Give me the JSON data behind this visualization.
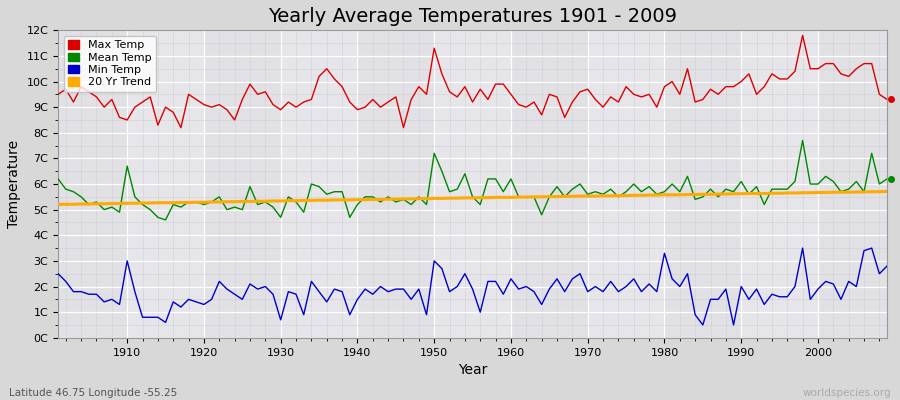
{
  "title": "Yearly Average Temperatures 1901 - 2009",
  "xlabel": "Year",
  "ylabel": "Temperature",
  "subtitle_lat": "Latitude 46.75 Longitude -55.25",
  "watermark": "worldspecies.org",
  "years": [
    1901,
    1902,
    1903,
    1904,
    1905,
    1906,
    1907,
    1908,
    1909,
    1910,
    1911,
    1912,
    1913,
    1914,
    1915,
    1916,
    1917,
    1918,
    1919,
    1920,
    1921,
    1922,
    1923,
    1924,
    1925,
    1926,
    1927,
    1928,
    1929,
    1930,
    1931,
    1932,
    1933,
    1934,
    1935,
    1936,
    1937,
    1938,
    1939,
    1940,
    1941,
    1942,
    1943,
    1944,
    1945,
    1946,
    1947,
    1948,
    1949,
    1950,
    1951,
    1952,
    1953,
    1954,
    1955,
    1956,
    1957,
    1958,
    1959,
    1960,
    1961,
    1962,
    1963,
    1964,
    1965,
    1966,
    1967,
    1968,
    1969,
    1970,
    1971,
    1972,
    1973,
    1974,
    1975,
    1976,
    1977,
    1978,
    1979,
    1980,
    1981,
    1982,
    1983,
    1984,
    1985,
    1986,
    1987,
    1988,
    1989,
    1990,
    1991,
    1992,
    1993,
    1994,
    1995,
    1996,
    1997,
    1998,
    1999,
    2000,
    2001,
    2002,
    2003,
    2004,
    2005,
    2006,
    2007,
    2008,
    2009
  ],
  "max_temp": [
    9.5,
    9.7,
    9.2,
    9.8,
    9.6,
    9.4,
    9.0,
    9.3,
    8.6,
    8.5,
    9.0,
    9.2,
    9.4,
    8.3,
    9.0,
    8.8,
    8.2,
    9.5,
    9.3,
    9.1,
    9.0,
    9.1,
    8.9,
    8.5,
    9.3,
    9.9,
    9.5,
    9.6,
    9.1,
    8.9,
    9.2,
    9.0,
    9.2,
    9.3,
    10.2,
    10.5,
    10.1,
    9.8,
    9.2,
    8.9,
    9.0,
    9.3,
    9.0,
    9.2,
    9.4,
    8.2,
    9.3,
    9.8,
    9.5,
    11.3,
    10.3,
    9.6,
    9.4,
    9.8,
    9.2,
    9.7,
    9.3,
    9.9,
    9.9,
    9.5,
    9.1,
    9.0,
    9.2,
    8.7,
    9.5,
    9.4,
    8.6,
    9.2,
    9.6,
    9.7,
    9.3,
    9.0,
    9.4,
    9.2,
    9.8,
    9.5,
    9.4,
    9.5,
    9.0,
    9.8,
    10.0,
    9.5,
    10.5,
    9.2,
    9.3,
    9.7,
    9.5,
    9.8,
    9.8,
    10.0,
    10.3,
    9.5,
    9.8,
    10.3,
    10.1,
    10.1,
    10.4,
    11.8,
    10.5,
    10.5,
    10.7,
    10.7,
    10.3,
    10.2,
    10.5,
    10.7,
    10.7,
    9.5,
    9.3
  ],
  "mean_temp": [
    6.2,
    5.8,
    5.7,
    5.5,
    5.2,
    5.3,
    5.0,
    5.1,
    4.9,
    6.7,
    5.5,
    5.2,
    5.0,
    4.7,
    4.6,
    5.2,
    5.1,
    5.3,
    5.3,
    5.2,
    5.3,
    5.5,
    5.0,
    5.1,
    5.0,
    5.9,
    5.2,
    5.3,
    5.1,
    4.7,
    5.5,
    5.3,
    4.9,
    6.0,
    5.9,
    5.6,
    5.7,
    5.7,
    4.7,
    5.2,
    5.5,
    5.5,
    5.3,
    5.5,
    5.3,
    5.4,
    5.2,
    5.5,
    5.2,
    7.2,
    6.5,
    5.7,
    5.8,
    6.4,
    5.5,
    5.2,
    6.2,
    6.2,
    5.7,
    6.2,
    5.5,
    5.5,
    5.5,
    4.8,
    5.5,
    5.9,
    5.5,
    5.8,
    6.0,
    5.6,
    5.7,
    5.6,
    5.8,
    5.5,
    5.7,
    6.0,
    5.7,
    5.9,
    5.6,
    5.7,
    6.0,
    5.7,
    6.3,
    5.4,
    5.5,
    5.8,
    5.5,
    5.8,
    5.7,
    6.1,
    5.6,
    5.9,
    5.2,
    5.8,
    5.8,
    5.8,
    6.1,
    7.7,
    6.0,
    6.0,
    6.3,
    6.1,
    5.7,
    5.8,
    6.1,
    5.7,
    7.2,
    6.0,
    6.2
  ],
  "min_temp": [
    2.5,
    2.2,
    1.8,
    1.8,
    1.7,
    1.7,
    1.4,
    1.5,
    1.3,
    3.0,
    1.8,
    0.8,
    0.8,
    0.8,
    0.6,
    1.4,
    1.2,
    1.5,
    1.4,
    1.3,
    1.5,
    2.2,
    1.9,
    1.7,
    1.5,
    2.1,
    1.9,
    2.0,
    1.7,
    0.7,
    1.8,
    1.7,
    0.9,
    2.2,
    1.8,
    1.4,
    1.9,
    1.8,
    0.9,
    1.5,
    1.9,
    1.7,
    2.0,
    1.8,
    1.9,
    1.9,
    1.5,
    1.9,
    0.9,
    3.0,
    2.7,
    1.8,
    2.0,
    2.5,
    1.9,
    1.0,
    2.2,
    2.2,
    1.7,
    2.3,
    1.9,
    2.0,
    1.8,
    1.3,
    1.9,
    2.3,
    1.8,
    2.3,
    2.5,
    1.8,
    2.0,
    1.8,
    2.2,
    1.8,
    2.0,
    2.3,
    1.8,
    2.1,
    1.8,
    3.3,
    2.3,
    2.0,
    2.5,
    0.9,
    0.5,
    1.5,
    1.5,
    1.9,
    0.5,
    2.0,
    1.5,
    1.9,
    1.3,
    1.7,
    1.6,
    1.6,
    2.0,
    3.5,
    1.5,
    1.9,
    2.2,
    2.1,
    1.5,
    2.2,
    2.0,
    3.4,
    3.5,
    2.5,
    2.8
  ],
  "trend": [
    5.2,
    5.21,
    5.21,
    5.22,
    5.22,
    5.23,
    5.23,
    5.24,
    5.24,
    5.25,
    5.25,
    5.26,
    5.26,
    5.27,
    5.27,
    5.27,
    5.28,
    5.28,
    5.29,
    5.29,
    5.3,
    5.3,
    5.31,
    5.31,
    5.32,
    5.32,
    5.33,
    5.33,
    5.34,
    5.34,
    5.35,
    5.35,
    5.36,
    5.36,
    5.37,
    5.37,
    5.38,
    5.38,
    5.38,
    5.39,
    5.39,
    5.4,
    5.4,
    5.41,
    5.41,
    5.42,
    5.42,
    5.43,
    5.43,
    5.44,
    5.44,
    5.45,
    5.45,
    5.46,
    5.46,
    5.47,
    5.47,
    5.48,
    5.48,
    5.48,
    5.49,
    5.49,
    5.5,
    5.5,
    5.51,
    5.51,
    5.52,
    5.52,
    5.53,
    5.53,
    5.53,
    5.54,
    5.54,
    5.55,
    5.55,
    5.56,
    5.56,
    5.57,
    5.57,
    5.58,
    5.58,
    5.58,
    5.59,
    5.59,
    5.6,
    5.6,
    5.61,
    5.61,
    5.62,
    5.62,
    5.63,
    5.63,
    5.63,
    5.64,
    5.64,
    5.65,
    5.65,
    5.66,
    5.66,
    5.67,
    5.67,
    5.68,
    5.68,
    5.68,
    5.69,
    5.69,
    5.7,
    5.7,
    5.71
  ],
  "max_color": "#dd0000",
  "mean_color": "#008800",
  "min_color": "#0000cc",
  "trend_color": "#ffaa00",
  "bg_color": "#d8d8d8",
  "plot_bg_color": "#e8e8e8",
  "grid_major_color": "#ffffff",
  "grid_minor_color": "#d0d0d0",
  "ylim": [
    0,
    12
  ],
  "yticks": [
    0,
    1,
    2,
    3,
    4,
    5,
    6,
    7,
    8,
    9,
    10,
    11,
    12
  ],
  "ytick_labels": [
    "0C",
    "1C",
    "2C",
    "3C",
    "4C",
    "5C",
    "6C",
    "7C",
    "8C",
    "9C",
    "10C",
    "11C",
    "12C"
  ],
  "xlim_start": 1901,
  "xlim_end": 2009,
  "xticks": [
    1910,
    1920,
    1930,
    1940,
    1950,
    1960,
    1970,
    1980,
    1990,
    2000
  ],
  "legend_items": [
    "Max Temp",
    "Mean Temp",
    "Min Temp",
    "20 Yr Trend"
  ],
  "legend_colors": [
    "#dd0000",
    "#008800",
    "#0000cc",
    "#ffaa00"
  ],
  "title_fontsize": 14,
  "axis_label_fontsize": 10,
  "tick_fontsize": 8,
  "legend_fontsize": 8,
  "linewidth": 1.0,
  "trend_linewidth": 2.2
}
